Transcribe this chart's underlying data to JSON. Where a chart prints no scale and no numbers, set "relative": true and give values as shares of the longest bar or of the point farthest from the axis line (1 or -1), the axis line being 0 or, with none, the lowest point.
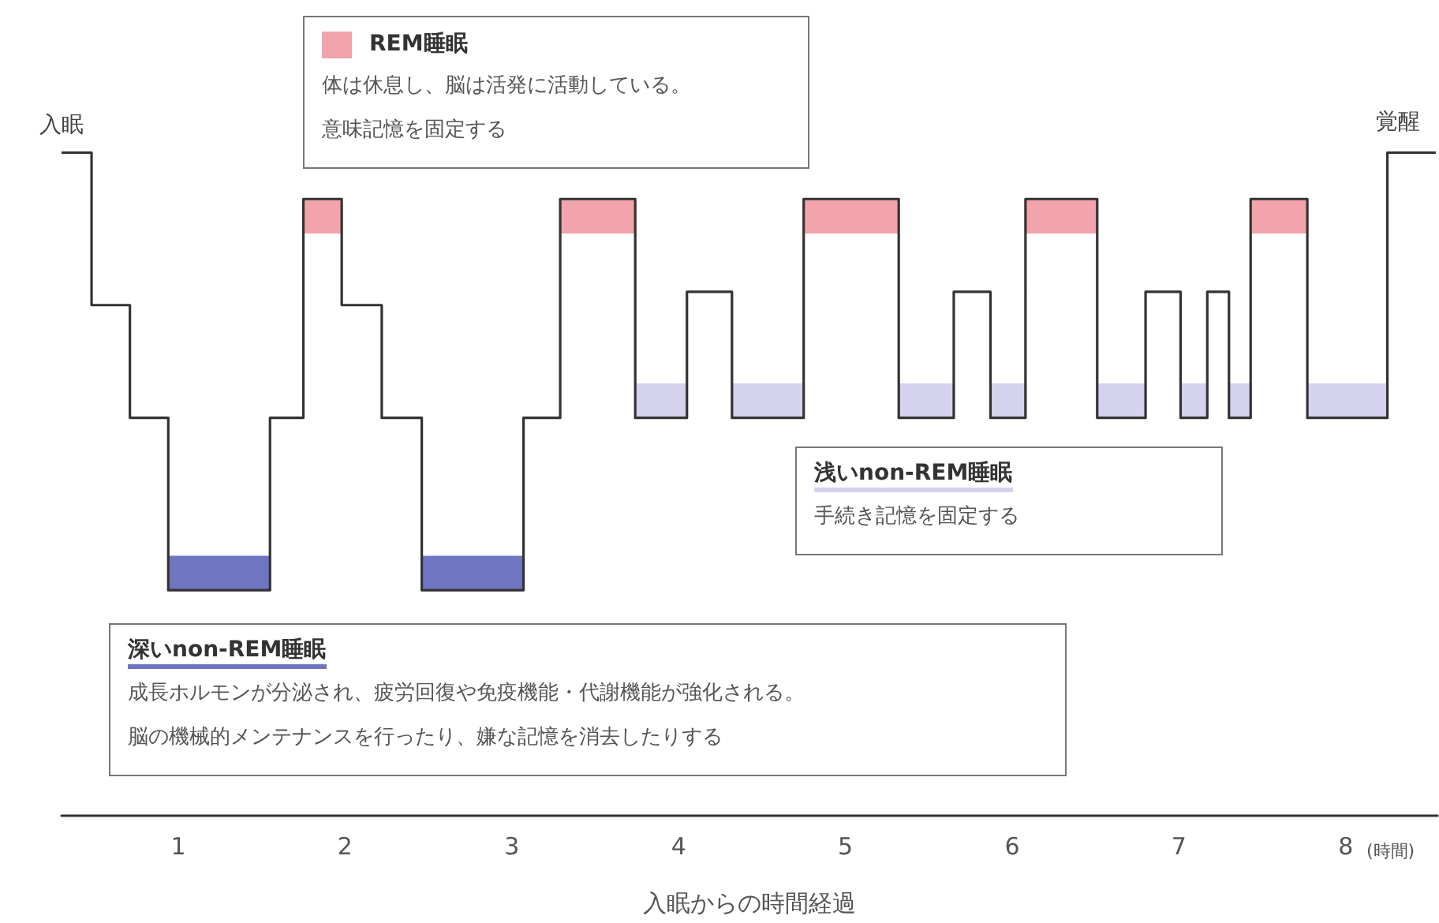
{
  "chart_data": {
    "type": "step",
    "relative": true,
    "xlabel": "入眠からの時間経過",
    "x": [
      0.3,
      0.48,
      0.71,
      0.94,
      1.55,
      1.75,
      1.98,
      2.22,
      2.46,
      3.07,
      3.29,
      3.74,
      4.05,
      4.32,
      4.75,
      5.32,
      5.65,
      5.87,
      6.08,
      6.51,
      6.8,
      7.01,
      7.17,
      7.3,
      7.43,
      7.77,
      8.25,
      8.54
    ],
    "series": [
      {
        "color": "#333333",
        "values": [
          1,
          0.77,
          0.6,
          0.34,
          0.6,
          0.93,
          0.77,
          0.6,
          0.34,
          0.6,
          0.93,
          0.6,
          0.79,
          0.6,
          0.93,
          0.6,
          0.79,
          0.6,
          0.93,
          0.6,
          0.79,
          0.6,
          0.79,
          0.6,
          0.93,
          0.6,
          1,
          1
        ]
      }
    ],
    "xlim": [
      0.3,
      8.55
    ],
    "xticks": [
      1,
      2,
      3,
      4,
      5,
      6,
      7,
      8
    ],
    "grid": false,
    "marker": "none",
    "line_style": "solid",
    "bands": [
      {
        "axis": "x",
        "from": 1.75,
        "to": 1.98,
        "color": "#f2a3ab"
      },
      {
        "axis": "x",
        "from": 3.29,
        "to": 3.74,
        "color": "#f2a3ab"
      },
      {
        "axis": "x",
        "from": 4.75,
        "to": 5.32,
        "color": "#f2a3ab"
      },
      {
        "axis": "x",
        "from": 6.08,
        "to": 6.51,
        "color": "#f2a3ab"
      },
      {
        "axis": "x",
        "from": 7.43,
        "to": 7.77,
        "color": "#f2a3ab"
      },
      {
        "axis": "x",
        "from": 3.74,
        "to": 4.05,
        "color": "#d4d2ee"
      },
      {
        "axis": "x",
        "from": 4.32,
        "to": 4.75,
        "color": "#d4d2ee"
      },
      {
        "axis": "x",
        "from": 5.32,
        "to": 5.65,
        "color": "#d4d2ee"
      },
      {
        "axis": "x",
        "from": 5.87,
        "to": 6.08,
        "color": "#d4d2ee"
      },
      {
        "axis": "x",
        "from": 6.51,
        "to": 6.8,
        "color": "#d4d2ee"
      },
      {
        "axis": "x",
        "from": 7.01,
        "to": 7.17,
        "color": "#d4d2ee"
      },
      {
        "axis": "x",
        "from": 7.3,
        "to": 7.43,
        "color": "#d4d2ee"
      },
      {
        "axis": "x",
        "from": 7.77,
        "to": 8.25,
        "color": "#d4d2ee"
      },
      {
        "axis": "x",
        "from": 0.94,
        "to": 1.55,
        "color": "#6e76c2"
      },
      {
        "axis": "x",
        "from": 2.46,
        "to": 3.07,
        "color": "#6e76c2"
      }
    ],
    "annotations": [
      "REM睡眠",
      "体は休息し、脳は活発に活動している。",
      "意味記憶を固定する",
      "浅いnon-REM睡眠",
      "手続き記憶を固定する",
      "深いnon-REM睡眠",
      "成長ホルモンが分泌され、疲労回復や免疫機能・代謝機能が強化される。",
      "脳の機械的メンテナンスを行ったり、嫌な記憶を消去したりする",
      "(時間)",
      {
        "text": "入眠",
        "x": 0.3,
        "y": 1
      },
      {
        "text": "覚醒",
        "x": 8.54,
        "y": 1
      }
    ]
  }
}
